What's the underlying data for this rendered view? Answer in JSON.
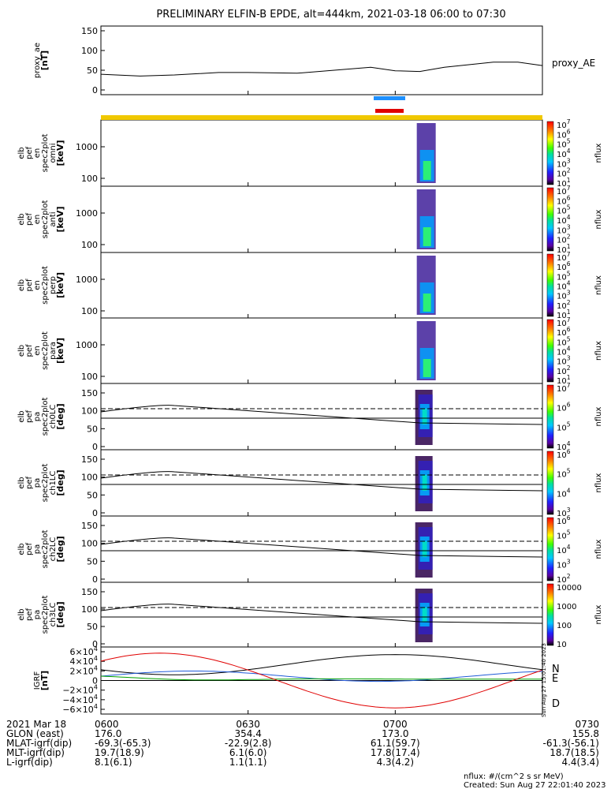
{
  "title": "PRELIMINARY ELFIN-B EPDE, alt=444km, 2021-03-18 06:00 to 07:30",
  "time_axis": {
    "start": "06:00",
    "end": "07:30"
  },
  "panels": [
    {
      "id": "proxy_ae",
      "type": "line",
      "ylabel": [
        "proxy_ae",
        "[nT]"
      ],
      "right_label": "proxy_AE",
      "yticks": [
        "150",
        "100",
        "50",
        "0"
      ],
      "ylim": [
        -10,
        160
      ]
    },
    {
      "id": "en_omni",
      "type": "heatmap",
      "ylabel": [
        "elb",
        "pef",
        "en",
        "spec2plot",
        "omni",
        "[keV]"
      ],
      "yticks": [
        "1000",
        "100"
      ],
      "colorbar": {
        "label": "nflux",
        "ticks": [
          "10^7",
          "10^6",
          "10^5",
          "10^4",
          "10^3",
          "10^2",
          "10^1"
        ]
      }
    },
    {
      "id": "en_anti",
      "type": "heatmap",
      "ylabel": [
        "elb",
        "pef",
        "en",
        "spec2plot",
        "anti",
        "[keV]"
      ],
      "yticks": [
        "1000",
        "100"
      ],
      "colorbar": {
        "label": "nflux",
        "ticks": [
          "10^7",
          "10^6",
          "10^5",
          "10^4",
          "10^3",
          "10^2",
          "10^1"
        ]
      }
    },
    {
      "id": "en_perp",
      "type": "heatmap",
      "ylabel": [
        "elb",
        "pef",
        "en",
        "spec2plot",
        "perp",
        "[keV]"
      ],
      "yticks": [
        "1000",
        "100"
      ],
      "colorbar": {
        "label": "nflux",
        "ticks": [
          "10^7",
          "10^6",
          "10^5",
          "10^4",
          "10^3",
          "10^2",
          "10^1"
        ]
      }
    },
    {
      "id": "en_para",
      "type": "heatmap",
      "ylabel": [
        "elb",
        "pef",
        "en",
        "spec2plot",
        "para",
        "[keV]"
      ],
      "yticks": [
        "1000",
        "100"
      ],
      "colorbar": {
        "label": "nflux",
        "ticks": [
          "10^7",
          "10^6",
          "10^5",
          "10^4",
          "10^3",
          "10^2",
          "10^1"
        ]
      }
    },
    {
      "id": "pa_ch0",
      "type": "heatmap",
      "ylabel": [
        "elb",
        "pef",
        "pa",
        "spec2plot",
        "ch0LC",
        "[deg]"
      ],
      "yticks": [
        "150",
        "100",
        "50",
        "0"
      ],
      "colorbar": {
        "label": "nflux",
        "ticks": [
          "10^7",
          "10^6",
          "10^5",
          "10^4"
        ]
      }
    },
    {
      "id": "pa_ch1",
      "type": "heatmap",
      "ylabel": [
        "elb",
        "pef",
        "pa",
        "spec2plot",
        "ch1LC",
        "[deg]"
      ],
      "yticks": [
        "150",
        "100",
        "50",
        "0"
      ],
      "colorbar": {
        "label": "nflux",
        "ticks": [
          "10^6",
          "10^5",
          "10^4",
          "10^3"
        ]
      }
    },
    {
      "id": "pa_ch2",
      "type": "heatmap",
      "ylabel": [
        "elb",
        "pef",
        "pa",
        "spec2plot",
        "ch2LC",
        "[deg]"
      ],
      "yticks": [
        "150",
        "100",
        "50",
        "0"
      ],
      "colorbar": {
        "label": "nflux",
        "ticks": [
          "10^6",
          "10^5",
          "10^4",
          "10^3",
          "10^2"
        ]
      }
    },
    {
      "id": "pa_ch3",
      "type": "heatmap",
      "ylabel": [
        "elb",
        "pef",
        "pa",
        "spec2plot",
        "ch3LC",
        "[deg]"
      ],
      "yticks": [
        "150",
        "100",
        "50",
        "0"
      ],
      "colorbar": {
        "label": "nflux",
        "ticks": [
          "10000",
          "1000",
          "100",
          "10"
        ]
      }
    },
    {
      "id": "igrf",
      "type": "line",
      "ylabel": [
        "IGRF",
        "[nT]"
      ],
      "yticks": [
        "6×10^4",
        "4×10^4",
        "2×10^4",
        "0",
        "−2×10^4",
        "−4×10^4",
        "−6×10^4"
      ],
      "legend": [
        "N",
        "E",
        "D"
      ]
    }
  ],
  "chart_data": {
    "type": "line",
    "title": "PRELIMINARY ELFIN-B EPDE, alt=444km, 2021-03-18 06:00 to 07:30",
    "x_minutes": [
      0,
      8,
      15,
      24,
      30,
      40,
      55,
      60,
      65,
      70,
      80,
      85,
      90
    ],
    "proxy_ae": [
      35,
      30,
      33,
      40,
      40,
      38,
      55,
      45,
      43,
      55,
      70,
      70,
      60
    ],
    "series": [
      {
        "name": "N",
        "color": "#1f5bd8"
      },
      {
        "name": "E",
        "color": "#00a000"
      },
      {
        "name": "D",
        "color": "#e00000"
      }
    ]
  },
  "annotations": {
    "bars": [
      {
        "color": "#1e90ff"
      },
      {
        "color": "#e00000"
      }
    ],
    "footer_time_labels": [
      "0600",
      "0630",
      "0700",
      "0730"
    ],
    "footer_rows": [
      {
        "label": "2021 Mar 18",
        "values": [
          "0600",
          "0630",
          "0700",
          "0730"
        ]
      },
      {
        "label": "GLON (east)",
        "values": [
          "176.0",
          "354.4",
          "173.0",
          "155.8"
        ]
      },
      {
        "label": "MLAT-igrf(dip)",
        "values": [
          "-69.3(-65.3)",
          "-22.9(2.8)",
          "61.1(59.7)",
          "-61.3(-56.1)"
        ]
      },
      {
        "label": "MLT-igrf(dip)",
        "values": [
          "19.7(18.9)",
          "6.1(6.0)",
          "17.8(17.4)",
          "18.7(18.5)"
        ]
      },
      {
        "label": "L-igrf(dip)",
        "values": [
          "8.1(6.1)",
          "1.1(1.1)",
          "4.3(4.2)",
          "4.4(3.4)"
        ]
      }
    ],
    "footnote": "nflux: #/(cm^2 s sr MeV)",
    "created": "Created: Sun Aug 27 22:01:40 2023",
    "vertical_stamp": "Sun Aug 27 15:01:40 2023"
  },
  "colors": {
    "bar_blue": "#1e90ff",
    "bar_red": "#e00000",
    "yellow_strip": "#f0c800"
  }
}
